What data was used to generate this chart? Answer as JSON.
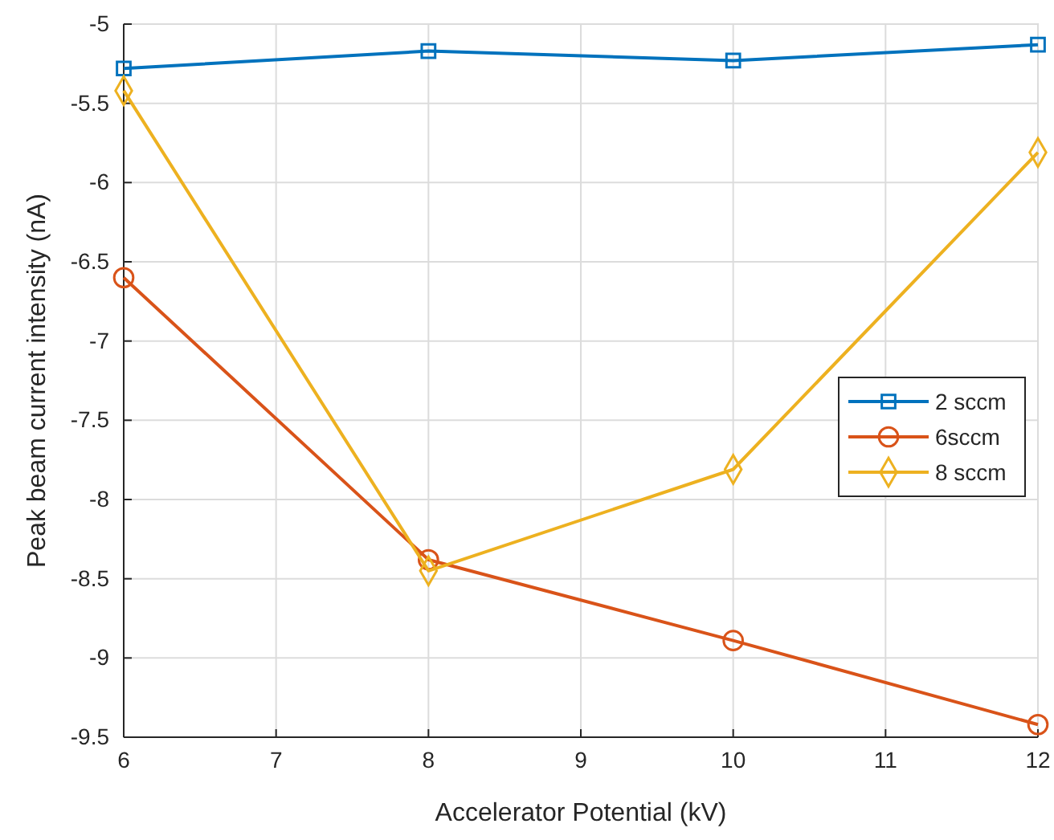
{
  "chart_data": {
    "type": "line",
    "xlabel": "Accelerator Potential (kV)",
    "ylabel": "Peak beam current intensity (nA)",
    "x": [
      6,
      8,
      10,
      12
    ],
    "series": [
      {
        "name": "2 sccm",
        "color": "#0072bd",
        "marker": "square",
        "values": [
          -5.28,
          -5.17,
          -5.23,
          -5.13
        ]
      },
      {
        "name": "6sccm",
        "color": "#d95319",
        "marker": "circle",
        "values": [
          -6.6,
          -8.38,
          -8.89,
          -9.42
        ]
      },
      {
        "name": "8 sccm",
        "color": "#edb120",
        "marker": "diamond",
        "values": [
          -5.42,
          -8.45,
          -7.81,
          -5.81
        ]
      }
    ],
    "xlim": [
      6,
      12
    ],
    "xticks": [
      6,
      7,
      8,
      9,
      10,
      11,
      12
    ],
    "ylim": [
      -9.5,
      -5
    ],
    "yticks": [
      -9.5,
      -9,
      -8.5,
      -8,
      -7.5,
      -7,
      -6.5,
      -6,
      -5.5,
      -5
    ],
    "grid": true,
    "legend": "right",
    "line_style": "solid"
  }
}
